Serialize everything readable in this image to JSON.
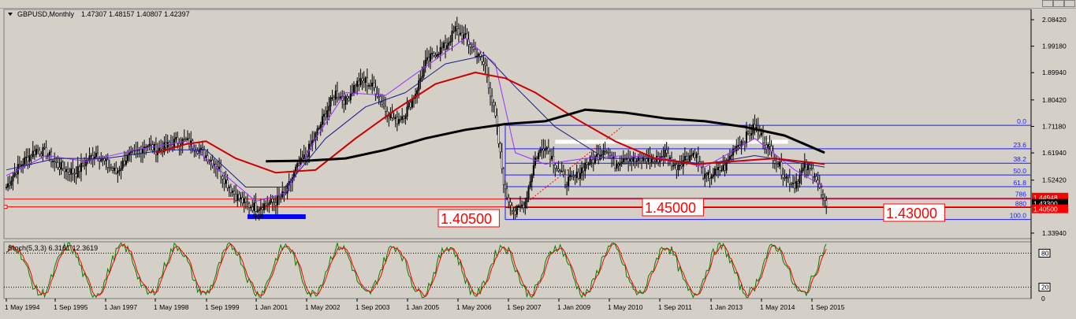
{
  "window": {
    "title": "GBPUSD,Monthly",
    "ohlc": "1.47307 1.48157 1.40807 1.42397"
  },
  "indicator": {
    "title": "Stoch(5,3,3) 6.3161 12.3619",
    "levels": [
      "80",
      "20",
      "0"
    ]
  },
  "annotations": {
    "level_a": "1.40500",
    "level_b": "1.45000",
    "level_c": "1.43000"
  },
  "price_tags": {
    "tag1": "1.44948",
    "tag2": "1.43300",
    "tag3": "1.40500"
  },
  "colors": {
    "background": "#d4d0c8",
    "bull_candle": "#000000",
    "bear_candle": "#ffffff",
    "fib": "#1a1aff",
    "ma_black": "#000000",
    "ma_red": "#cc0000",
    "ma_navy": "#1a1a8a",
    "ma_purple": "#9b30ff",
    "stoch_main": "#008000",
    "stoch_signal": "#ff0000",
    "horizontal_red": "#ff0000",
    "blue_zone": "#0000ff"
  },
  "chart_data": {
    "type": "candlestick",
    "symbol": "GBPUSD",
    "timeframe": "Monthly",
    "y_axis_labels": [
      "2.08420",
      "1.99180",
      "1.89940",
      "1.80420",
      "1.71180",
      "1.61940",
      "1.52420",
      "1.43300",
      "1.33940"
    ],
    "x_axis_labels": [
      "1 May 1994",
      "1 Sep 1995",
      "1 Jan 1997",
      "1 May 1998",
      "1 Sep 1999",
      "1 Jan 2001",
      "1 May 2002",
      "1 Sep 2003",
      "1 Jan 2005",
      "1 May 2006",
      "1 Sep 2007",
      "1 Jan 2009",
      "1 May 2010",
      "1 Sep 2011",
      "1 Jan 2013",
      "1 May 2014",
      "1 Sep 2015"
    ],
    "ylim": [
      1.32,
      2.12
    ],
    "fibonacci": {
      "labels": [
        "0.0",
        "23.6",
        "38.2",
        "50.0",
        "61.8",
        "786",
        "880",
        "100.0"
      ],
      "prices": [
        1.7156,
        1.6338,
        1.5833,
        1.5424,
        1.5016,
        1.461,
        1.4285,
        1.3871
      ]
    },
    "price_path": [
      [
        0,
        1.5
      ],
      [
        6,
        1.56
      ],
      [
        12,
        1.6
      ],
      [
        18,
        1.63
      ],
      [
        24,
        1.62
      ],
      [
        30,
        1.58
      ],
      [
        36,
        1.56
      ],
      [
        42,
        1.55
      ],
      [
        48,
        1.59
      ],
      [
        54,
        1.62
      ],
      [
        60,
        1.58
      ],
      [
        66,
        1.55
      ],
      [
        72,
        1.6
      ],
      [
        78,
        1.62
      ],
      [
        84,
        1.65
      ],
      [
        90,
        1.63
      ],
      [
        96,
        1.64
      ],
      [
        102,
        1.66
      ],
      [
        108,
        1.66
      ],
      [
        114,
        1.64
      ],
      [
        120,
        1.61
      ],
      [
        126,
        1.58
      ],
      [
        132,
        1.52
      ],
      [
        138,
        1.47
      ],
      [
        144,
        1.44
      ],
      [
        150,
        1.43
      ],
      [
        156,
        1.44
      ],
      [
        162,
        1.45
      ],
      [
        168,
        1.48
      ],
      [
        174,
        1.56
      ],
      [
        180,
        1.61
      ],
      [
        186,
        1.68
      ],
      [
        192,
        1.76
      ],
      [
        198,
        1.83
      ],
      [
        204,
        1.8
      ],
      [
        210,
        1.86
      ],
      [
        216,
        1.87
      ],
      [
        222,
        1.84
      ],
      [
        228,
        1.77
      ],
      [
        234,
        1.73
      ],
      [
        240,
        1.76
      ],
      [
        246,
        1.83
      ],
      [
        252,
        1.93
      ],
      [
        258,
        1.97
      ],
      [
        264,
        1.99
      ],
      [
        270,
        2.05
      ],
      [
        276,
        2.02
      ],
      [
        282,
        1.97
      ],
      [
        288,
        1.92
      ],
      [
        294,
        1.74
      ],
      [
        300,
        1.48
      ],
      [
        306,
        1.41
      ],
      [
        312,
        1.45
      ],
      [
        318,
        1.6
      ],
      [
        324,
        1.65
      ],
      [
        330,
        1.58
      ],
      [
        336,
        1.52
      ],
      [
        342,
        1.53
      ],
      [
        348,
        1.58
      ],
      [
        354,
        1.6
      ],
      [
        360,
        1.64
      ],
      [
        366,
        1.58
      ],
      [
        372,
        1.61
      ],
      [
        378,
        1.59
      ],
      [
        384,
        1.6
      ],
      [
        390,
        1.59
      ],
      [
        396,
        1.62
      ],
      [
        402,
        1.57
      ],
      [
        408,
        1.6
      ],
      [
        414,
        1.62
      ],
      [
        420,
        1.53
      ],
      [
        426,
        1.55
      ],
      [
        432,
        1.57
      ],
      [
        438,
        1.64
      ],
      [
        444,
        1.67
      ],
      [
        450,
        1.71
      ],
      [
        456,
        1.66
      ],
      [
        462,
        1.6
      ],
      [
        468,
        1.54
      ],
      [
        474,
        1.51
      ],
      [
        480,
        1.57
      ],
      [
        486,
        1.55
      ],
      [
        490,
        1.47
      ],
      [
        493,
        1.42
      ]
    ],
    "moving_averages": {
      "black": [
        [
          156,
          1.59
        ],
        [
          180,
          1.592
        ],
        [
          204,
          1.6
        ],
        [
          228,
          1.63
        ],
        [
          252,
          1.67
        ],
        [
          276,
          1.7
        ],
        [
          300,
          1.72
        ],
        [
          324,
          1.73
        ],
        [
          348,
          1.77
        ],
        [
          372,
          1.76
        ],
        [
          396,
          1.74
        ],
        [
          420,
          1.73
        ],
        [
          444,
          1.71
        ],
        [
          468,
          1.68
        ],
        [
          492,
          1.62
        ]
      ],
      "red": [
        [
          90,
          1.62
        ],
        [
          108,
          1.65
        ],
        [
          120,
          1.66
        ],
        [
          138,
          1.6
        ],
        [
          162,
          1.55
        ],
        [
          186,
          1.56
        ],
        [
          210,
          1.67
        ],
        [
          234,
          1.77
        ],
        [
          258,
          1.86
        ],
        [
          282,
          1.9
        ],
        [
          300,
          1.88
        ],
        [
          318,
          1.83
        ],
        [
          342,
          1.74
        ],
        [
          366,
          1.66
        ],
        [
          390,
          1.6
        ],
        [
          414,
          1.58
        ],
        [
          438,
          1.59
        ],
        [
          462,
          1.6
        ],
        [
          492,
          1.58
        ]
      ],
      "navy": [
        [
          0,
          1.56
        ],
        [
          30,
          1.6
        ],
        [
          60,
          1.6
        ],
        [
          96,
          1.63
        ],
        [
          120,
          1.63
        ],
        [
          144,
          1.5
        ],
        [
          168,
          1.5
        ],
        [
          192,
          1.67
        ],
        [
          216,
          1.78
        ],
        [
          240,
          1.83
        ],
        [
          264,
          1.93
        ],
        [
          288,
          1.96
        ],
        [
          306,
          1.85
        ],
        [
          330,
          1.71
        ],
        [
          360,
          1.6
        ],
        [
          390,
          1.6
        ],
        [
          420,
          1.58
        ],
        [
          450,
          1.61
        ],
        [
          492,
          1.57
        ]
      ],
      "purple": [
        [
          0,
          1.54
        ],
        [
          24,
          1.61
        ],
        [
          48,
          1.59
        ],
        [
          78,
          1.63
        ],
        [
          108,
          1.66
        ],
        [
          132,
          1.54
        ],
        [
          150,
          1.45
        ],
        [
          168,
          1.48
        ],
        [
          186,
          1.67
        ],
        [
          204,
          1.83
        ],
        [
          228,
          1.82
        ],
        [
          252,
          1.92
        ],
        [
          276,
          2.02
        ],
        [
          294,
          1.93
        ],
        [
          306,
          1.62
        ],
        [
          324,
          1.58
        ],
        [
          348,
          1.6
        ],
        [
          372,
          1.61
        ],
        [
          396,
          1.6
        ],
        [
          420,
          1.57
        ],
        [
          450,
          1.67
        ],
        [
          474,
          1.56
        ],
        [
          492,
          1.5
        ]
      ]
    },
    "stoch_range": [
      0,
      100
    ]
  }
}
